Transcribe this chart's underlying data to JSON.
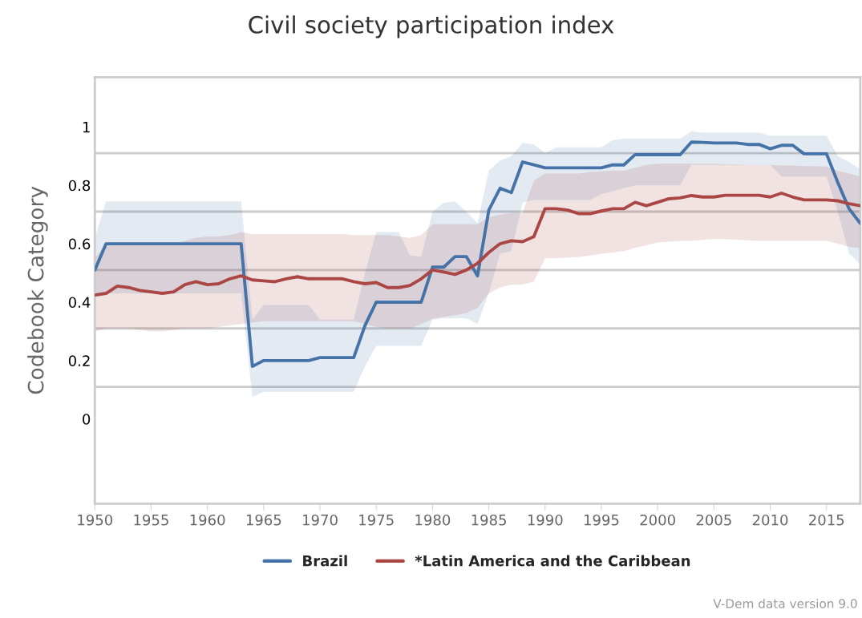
{
  "chart_data": {
    "type": "line",
    "title": "Civil society participation index",
    "ylabel": "Codebook Category",
    "annotations": [
      "V-Dem data version 9.0"
    ],
    "x": [
      1950,
      1951,
      1952,
      1953,
      1954,
      1955,
      1956,
      1957,
      1958,
      1959,
      1960,
      1961,
      1962,
      1963,
      1964,
      1965,
      1966,
      1967,
      1968,
      1969,
      1970,
      1971,
      1972,
      1973,
      1974,
      1975,
      1976,
      1977,
      1978,
      1979,
      1980,
      1981,
      1982,
      1983,
      1984,
      1985,
      1986,
      1987,
      1988,
      1989,
      1990,
      1991,
      1992,
      1993,
      1994,
      1995,
      1996,
      1997,
      1998,
      1999,
      2000,
      2001,
      2002,
      2003,
      2004,
      2005,
      2006,
      2007,
      2008,
      2009,
      2010,
      2011,
      2012,
      2013,
      2014,
      2015,
      2016,
      2017,
      2018
    ],
    "xlim": [
      1950,
      2018
    ],
    "xticks": [
      1950,
      1955,
      1960,
      1965,
      1970,
      1975,
      1980,
      1985,
      1990,
      1995,
      2000,
      2005,
      2010,
      2015
    ],
    "ylim": [
      -0.29,
      1.17
    ],
    "yticks": [
      0,
      0.2,
      0.4,
      0.6,
      0.8,
      1
    ],
    "grid": false,
    "legend": "bottom",
    "line_style": "solid",
    "marker": "none",
    "ref_lines": [
      {
        "axis": "y",
        "value": 0.11,
        "color": "#cccccc"
      },
      {
        "axis": "y",
        "value": 0.31,
        "color": "#cccccc"
      },
      {
        "axis": "y",
        "value": 0.51,
        "color": "#cccccc"
      },
      {
        "axis": "y",
        "value": 0.71,
        "color": "#cccccc"
      },
      {
        "axis": "y",
        "value": 0.91,
        "color": "#cccccc"
      }
    ],
    "series": [
      {
        "name": "Brazil",
        "color": "#4572a7",
        "values": [
          0.51,
          0.6,
          0.6,
          0.6,
          0.6,
          0.6,
          0.6,
          0.6,
          0.6,
          0.6,
          0.6,
          0.6,
          0.6,
          0.6,
          0.18,
          0.2,
          0.2,
          0.2,
          0.2,
          0.2,
          0.21,
          0.21,
          0.21,
          0.21,
          0.32,
          0.4,
          0.4,
          0.4,
          0.4,
          0.4,
          0.52,
          0.52,
          0.556,
          0.556,
          0.49,
          0.715,
          0.79,
          0.775,
          0.88,
          0.87,
          0.86,
          0.86,
          0.86,
          0.86,
          0.86,
          0.86,
          0.87,
          0.87,
          0.905,
          0.905,
          0.905,
          0.905,
          0.905,
          0.948,
          0.947,
          0.945,
          0.945,
          0.945,
          0.94,
          0.94,
          0.925,
          0.937,
          0.937,
          0.908,
          0.908,
          0.908,
          0.81,
          0.72,
          0.67
        ],
        "upper": [
          0.62,
          0.745,
          0.745,
          0.745,
          0.745,
          0.745,
          0.745,
          0.745,
          0.745,
          0.745,
          0.745,
          0.745,
          0.745,
          0.745,
          0.34,
          0.39,
          0.39,
          0.39,
          0.39,
          0.39,
          0.34,
          0.34,
          0.34,
          0.34,
          0.5,
          0.64,
          0.64,
          0.64,
          0.56,
          0.556,
          0.71,
          0.74,
          0.745,
          0.71,
          0.67,
          0.85,
          0.885,
          0.9,
          0.946,
          0.94,
          0.91,
          0.93,
          0.93,
          0.93,
          0.93,
          0.93,
          0.955,
          0.96,
          0.96,
          0.96,
          0.96,
          0.96,
          0.96,
          0.985,
          0.98,
          0.98,
          0.98,
          0.98,
          0.98,
          0.98,
          0.97,
          0.97,
          0.97,
          0.97,
          0.97,
          0.97,
          0.9,
          0.88,
          0.855
        ],
        "lower": [
          0.42,
          0.43,
          0.43,
          0.43,
          0.43,
          0.43,
          0.43,
          0.43,
          0.43,
          0.43,
          0.43,
          0.43,
          0.43,
          0.43,
          0.075,
          0.093,
          0.093,
          0.093,
          0.093,
          0.093,
          0.093,
          0.093,
          0.093,
          0.093,
          0.18,
          0.25,
          0.25,
          0.25,
          0.25,
          0.25,
          0.34,
          0.345,
          0.345,
          0.345,
          0.325,
          0.43,
          0.566,
          0.575,
          0.74,
          0.75,
          0.75,
          0.75,
          0.75,
          0.75,
          0.75,
          0.77,
          0.78,
          0.79,
          0.8,
          0.8,
          0.8,
          0.8,
          0.8,
          0.87,
          0.87,
          0.87,
          0.87,
          0.87,
          0.87,
          0.87,
          0.87,
          0.83,
          0.83,
          0.83,
          0.83,
          0.83,
          0.71,
          0.566,
          0.53
        ]
      },
      {
        "name": "*Latin America and the Caribbean",
        "color": "#aa4643",
        "values": [
          0.424,
          0.43,
          0.455,
          0.45,
          0.44,
          0.435,
          0.43,
          0.435,
          0.46,
          0.47,
          0.46,
          0.463,
          0.48,
          0.49,
          0.476,
          0.473,
          0.47,
          0.48,
          0.487,
          0.48,
          0.48,
          0.48,
          0.48,
          0.47,
          0.463,
          0.467,
          0.45,
          0.45,
          0.457,
          0.48,
          0.51,
          0.503,
          0.495,
          0.51,
          0.533,
          0.57,
          0.6,
          0.61,
          0.607,
          0.624,
          0.72,
          0.72,
          0.715,
          0.703,
          0.703,
          0.712,
          0.72,
          0.72,
          0.742,
          0.73,
          0.742,
          0.754,
          0.757,
          0.765,
          0.76,
          0.76,
          0.766,
          0.766,
          0.766,
          0.766,
          0.76,
          0.773,
          0.76,
          0.75,
          0.75,
          0.75,
          0.747,
          0.737,
          0.73
        ],
        "upper": [
          0.55,
          0.6,
          0.6,
          0.6,
          0.6,
          0.6,
          0.6,
          0.6,
          0.61,
          0.62,
          0.625,
          0.625,
          0.63,
          0.64,
          0.633,
          0.633,
          0.633,
          0.633,
          0.633,
          0.633,
          0.633,
          0.633,
          0.633,
          0.63,
          0.63,
          0.63,
          0.63,
          0.625,
          0.62,
          0.63,
          0.667,
          0.667,
          0.667,
          0.667,
          0.667,
          0.69,
          0.7,
          0.705,
          0.705,
          0.816,
          0.84,
          0.84,
          0.84,
          0.84,
          0.846,
          0.848,
          0.85,
          0.85,
          0.86,
          0.87,
          0.874,
          0.874,
          0.874,
          0.874,
          0.874,
          0.874,
          0.872,
          0.872,
          0.87,
          0.87,
          0.87,
          0.868,
          0.868,
          0.866,
          0.866,
          0.864,
          0.85,
          0.84,
          0.83
        ],
        "lower": [
          0.3,
          0.31,
          0.31,
          0.31,
          0.305,
          0.3,
          0.3,
          0.305,
          0.31,
          0.31,
          0.31,
          0.315,
          0.32,
          0.325,
          0.33,
          0.335,
          0.335,
          0.335,
          0.335,
          0.335,
          0.335,
          0.335,
          0.335,
          0.335,
          0.325,
          0.315,
          0.31,
          0.31,
          0.31,
          0.325,
          0.343,
          0.35,
          0.355,
          0.363,
          0.38,
          0.43,
          0.45,
          0.46,
          0.46,
          0.47,
          0.55,
          0.55,
          0.553,
          0.555,
          0.56,
          0.566,
          0.57,
          0.575,
          0.586,
          0.595,
          0.604,
          0.607,
          0.61,
          0.61,
          0.613,
          0.616,
          0.616,
          0.614,
          0.612,
          0.61,
          0.61,
          0.61,
          0.61,
          0.61,
          0.61,
          0.61,
          0.6,
          0.59,
          0.585
        ]
      }
    ]
  }
}
